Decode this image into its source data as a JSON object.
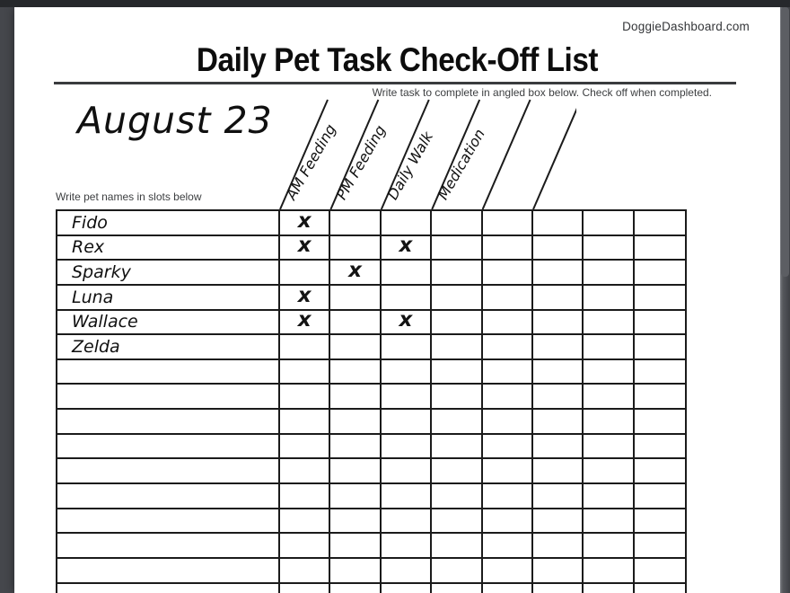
{
  "colors": {
    "viewer_bg": "#45474c",
    "viewer_topbar": "#26282b",
    "page_bg": "#ffffff",
    "line": "#1b1b1b"
  },
  "header": {
    "brand": "DoggieDashboard.com",
    "title": "Daily Pet Task Check-Off List",
    "subtitle": "Write task to complete in angled box below. Check off when completed."
  },
  "sheet": {
    "date": "August 23",
    "names_hint": "Write pet names in slots below",
    "mark_glyph": "x"
  },
  "tasks": [
    "AM Feeding",
    "PM Feeding",
    "Daily Walk",
    "Medication",
    "",
    "",
    "",
    ""
  ],
  "pets": [
    {
      "name": "Fido",
      "checks": [
        1,
        0,
        0,
        0,
        0,
        0,
        0,
        0
      ]
    },
    {
      "name": "Rex",
      "checks": [
        1,
        0,
        1,
        0,
        0,
        0,
        0,
        0
      ]
    },
    {
      "name": "Sparky",
      "checks": [
        0,
        1,
        0,
        0,
        0,
        0,
        0,
        0
      ]
    },
    {
      "name": "Luna",
      "checks": [
        1,
        0,
        0,
        0,
        0,
        0,
        0,
        0
      ]
    },
    {
      "name": "Wallace",
      "checks": [
        1,
        0,
        1,
        0,
        0,
        0,
        0,
        0
      ]
    },
    {
      "name": "Zelda",
      "checks": [
        0,
        0,
        0,
        0,
        0,
        0,
        0,
        0
      ]
    }
  ],
  "empty_rows": 10
}
